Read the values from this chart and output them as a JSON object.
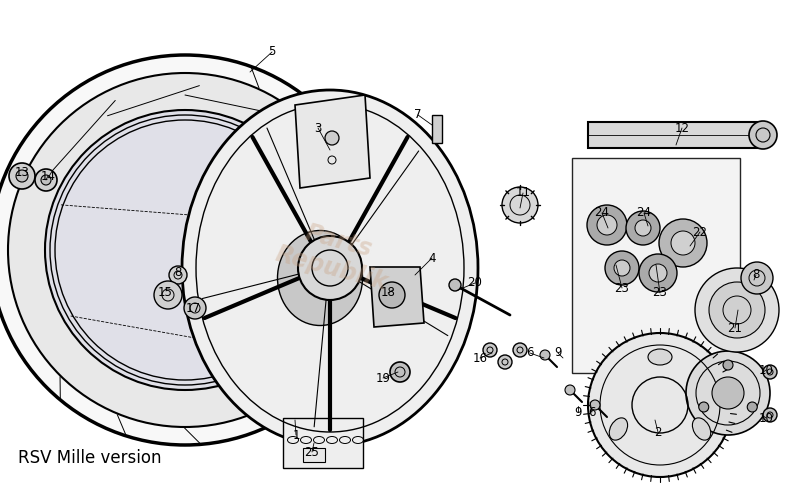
{
  "title": "RSV Mille version",
  "bg_color": "#ffffff",
  "line_color": "#000000",
  "label_color": "#000000",
  "watermark_color": "#c8a080",
  "watermark_alpha": 0.35,
  "figsize": [
    8.0,
    4.9
  ],
  "dpi": 100
}
